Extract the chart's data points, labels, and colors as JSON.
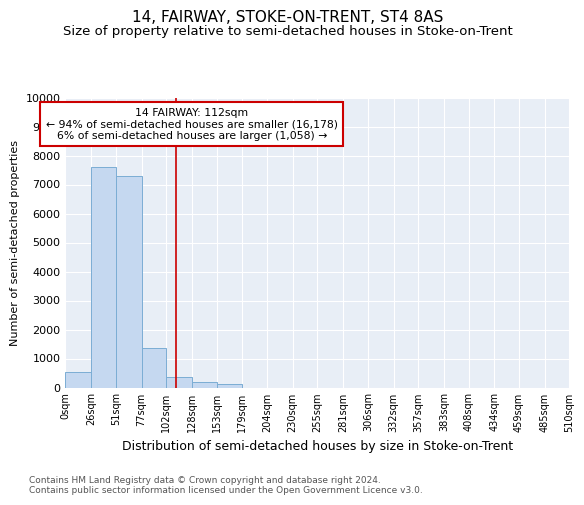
{
  "title": "14, FAIRWAY, STOKE-ON-TRENT, ST4 8AS",
  "subtitle": "Size of property relative to semi-detached houses in Stoke-on-Trent",
  "xlabel": "Distribution of semi-detached houses by size in Stoke-on-Trent",
  "ylabel": "Number of semi-detached properties",
  "property_label": "14 FAIRWAY: 112sqm",
  "pct_smaller": 94,
  "count_smaller": 16178,
  "pct_larger": 6,
  "count_larger": 1058,
  "bin_edges": [
    0,
    26,
    51,
    77,
    102,
    128,
    153,
    179,
    204,
    230,
    255,
    281,
    306,
    332,
    357,
    383,
    408,
    434,
    459,
    485,
    510
  ],
  "bin_labels": [
    "0sqm",
    "26sqm",
    "51sqm",
    "77sqm",
    "102sqm",
    "128sqm",
    "153sqm",
    "179sqm",
    "204sqm",
    "230sqm",
    "255sqm",
    "281sqm",
    "306sqm",
    "332sqm",
    "357sqm",
    "383sqm",
    "408sqm",
    "434sqm",
    "459sqm",
    "485sqm",
    "510sqm"
  ],
  "bar_heights": [
    550,
    7600,
    7300,
    1350,
    350,
    175,
    125,
    0,
    0,
    0,
    0,
    0,
    0,
    0,
    0,
    0,
    0,
    0,
    0,
    0
  ],
  "bar_color": "#c5d8f0",
  "bar_edge_color": "#7badd4",
  "vline_color": "#cc0000",
  "vline_x": 112,
  "box_facecolor": "white",
  "box_edgecolor": "#cc0000",
  "ylim": [
    0,
    10000
  ],
  "yticks": [
    0,
    1000,
    2000,
    3000,
    4000,
    5000,
    6000,
    7000,
    8000,
    9000,
    10000
  ],
  "background_color": "#e8eef6",
  "footer": "Contains HM Land Registry data © Crown copyright and database right 2024.\nContains public sector information licensed under the Open Government Licence v3.0.",
  "title_fontsize": 11,
  "subtitle_fontsize": 9.5,
  "ylabel_fontsize": 8,
  "xlabel_fontsize": 9,
  "footer_fontsize": 6.5
}
